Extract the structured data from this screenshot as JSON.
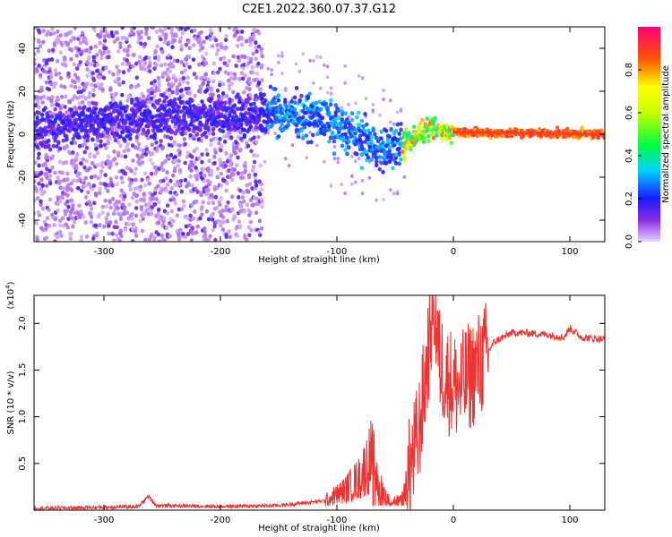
{
  "title": "C2E1.2022.360.07.37.G12",
  "chart_data": [
    {
      "type": "heatmap",
      "name": "spectrogram",
      "xlabel": "Height of straight line (km)",
      "ylabel": "Frequency (Hz)",
      "xlim": [
        -360,
        130
      ],
      "ylim": [
        -50,
        50
      ],
      "xticks": [
        -300,
        -200,
        -100,
        0,
        100
      ],
      "yticks": [
        -40,
        -20,
        0,
        20,
        40
      ],
      "colorbar": {
        "label": "Normalized spectral amplitude",
        "range": [
          0,
          1
        ],
        "ticks": [
          "0.0",
          "0.2",
          "0.4",
          "0.6",
          "0.8"
        ],
        "colormap": "rainbow"
      },
      "ridge": [
        {
          "x": -360,
          "y": 2
        },
        {
          "x": -300,
          "y": 6
        },
        {
          "x": -250,
          "y": 8
        },
        {
          "x": -200,
          "y": 8
        },
        {
          "x": -150,
          "y": 10
        },
        {
          "x": -120,
          "y": 8
        },
        {
          "x": -100,
          "y": 4
        },
        {
          "x": -80,
          "y": -2
        },
        {
          "x": -60,
          "y": -8
        },
        {
          "x": -45,
          "y": -5
        },
        {
          "x": -30,
          "y": 0
        },
        {
          "x": -20,
          "y": 2
        },
        {
          "x": 0,
          "y": 1
        },
        {
          "x": 130,
          "y": 0
        }
      ]
    },
    {
      "type": "line",
      "name": "snr",
      "xlabel": "Height of straight line (km)",
      "ylabel": "SNR (10 * v/v)",
      "yscale_label": "(x10",
      "yscale_exp": "4",
      "xlim": [
        -360,
        130
      ],
      "ylim": [
        0,
        2.3
      ],
      "xticks": [
        -300,
        -200,
        -100,
        0,
        100
      ],
      "yticks": [
        "0.5",
        "1.0",
        "1.5",
        "2.0"
      ],
      "series_color": "#ee3333",
      "x": [
        -360,
        -300,
        -270,
        -262,
        -255,
        -200,
        -150,
        -110,
        -95,
        -80,
        -70,
        -65,
        -55,
        -45,
        -38,
        -30,
        -25,
        -20,
        -17,
        -12,
        -5,
        5,
        15,
        25,
        35,
        50,
        60,
        80,
        95,
        100,
        110,
        130
      ],
      "y": [
        0.02,
        0.03,
        0.04,
        0.15,
        0.05,
        0.04,
        0.05,
        0.1,
        0.2,
        0.35,
        0.6,
        0.3,
        0.1,
        0.1,
        0.4,
        0.8,
        1.3,
        1.9,
        2.3,
        1.6,
        1.4,
        1.3,
        1.45,
        1.6,
        1.8,
        1.9,
        1.9,
        1.88,
        1.85,
        1.95,
        1.85,
        1.83
      ]
    }
  ]
}
